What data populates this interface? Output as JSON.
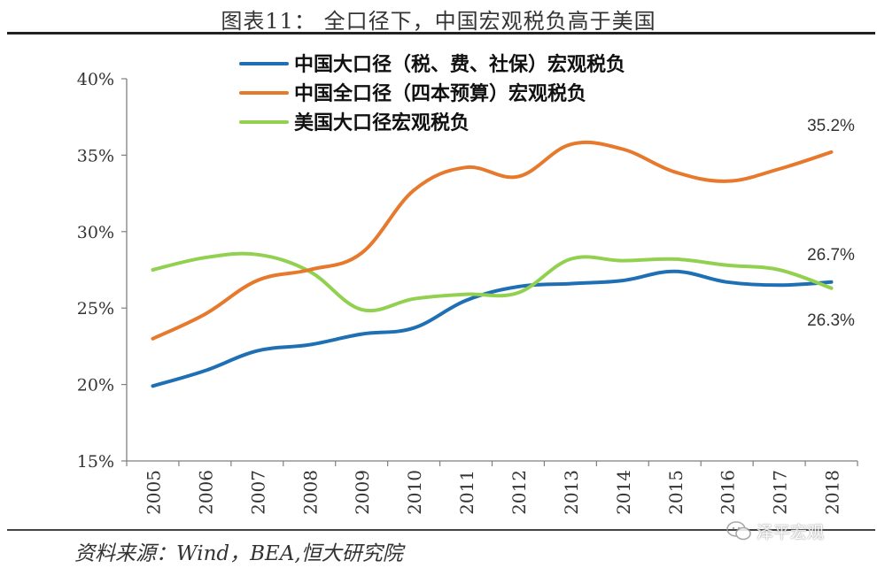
{
  "page": {
    "title": "图表11：   全口径下，中国宏观税负高于美国",
    "source": "资料来源：Wind，BEA,恒大研究院",
    "watermark": "泽平宏观"
  },
  "chart_data": {
    "type": "line",
    "title": "图表11：   全口径下，中国宏观税负高于美国",
    "xlabel": "",
    "ylabel": "",
    "categories": [
      "2005",
      "2006",
      "2007",
      "2008",
      "2009",
      "2010",
      "2011",
      "2012",
      "2013",
      "2014",
      "2015",
      "2016",
      "2017",
      "2018"
    ],
    "ylim": [
      15,
      40
    ],
    "yticks": [
      15,
      20,
      25,
      30,
      35,
      40
    ],
    "ytick_labels": [
      "15%",
      "20%",
      "25%",
      "30%",
      "35%",
      "40%"
    ],
    "grid": false,
    "legend_position": "top-center",
    "series": [
      {
        "name": "中国大口径（税、费、社保）宏观税负",
        "color": "#1F6FB4",
        "values": [
          19.9,
          20.9,
          22.2,
          22.6,
          23.3,
          23.7,
          25.5,
          26.4,
          26.6,
          26.8,
          27.4,
          26.7,
          26.5,
          26.7
        ],
        "end_label": "26.7%"
      },
      {
        "name": "中国全口径（四本预算）宏观税负",
        "color": "#E6792B",
        "values": [
          23.0,
          24.6,
          26.8,
          27.5,
          28.6,
          32.7,
          34.2,
          33.6,
          35.7,
          35.4,
          33.9,
          33.3,
          34.1,
          35.2
        ],
        "end_label": "35.2%"
      },
      {
        "name": "美国大口径宏观税负",
        "color": "#92D050",
        "values": [
          27.5,
          28.3,
          28.5,
          27.4,
          24.9,
          25.6,
          25.9,
          26.0,
          28.2,
          28.1,
          28.2,
          27.8,
          27.5,
          26.3
        ],
        "end_label": "26.3%"
      }
    ]
  }
}
